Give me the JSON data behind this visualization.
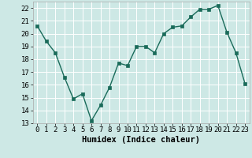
{
  "x": [
    0,
    1,
    2,
    3,
    4,
    5,
    6,
    7,
    8,
    9,
    10,
    11,
    12,
    13,
    14,
    15,
    16,
    17,
    18,
    19,
    20,
    21,
    22,
    23
  ],
  "y": [
    20.6,
    19.4,
    18.5,
    16.6,
    14.9,
    15.3,
    13.2,
    14.4,
    15.8,
    17.7,
    17.5,
    19.0,
    19.0,
    18.5,
    20.0,
    20.5,
    20.6,
    21.3,
    21.9,
    21.9,
    22.2,
    20.1,
    18.5,
    16.1
  ],
  "line_color": "#1a6b5a",
  "marker_color": "#1a6b5a",
  "bg_color": "#cde8e5",
  "grid_color": "#ffffff",
  "xlabel": "Humidex (Indice chaleur)",
  "ylim_min": 13,
  "ylim_max": 22.5,
  "yticks": [
    13,
    14,
    15,
    16,
    17,
    18,
    19,
    20,
    21,
    22
  ],
  "xticks": [
    0,
    1,
    2,
    3,
    4,
    5,
    6,
    7,
    8,
    9,
    10,
    11,
    12,
    13,
    14,
    15,
    16,
    17,
    18,
    19,
    20,
    21,
    22,
    23
  ],
  "xlabel_fontsize": 7.5,
  "tick_fontsize": 6.5,
  "line_width": 1.0,
  "marker_size": 2.5
}
